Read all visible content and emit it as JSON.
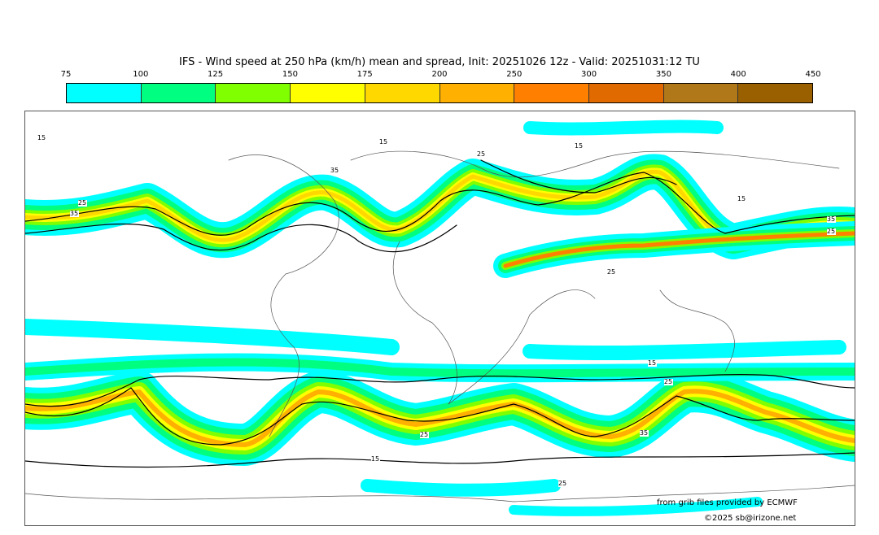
{
  "title": "IFS - Wind speed at 250 hPa (km/h) mean and spread, Init: 20251026 12z - Valid: 20251031:12 TU",
  "colorbar": {
    "ticks": [
      "75",
      "100",
      "125",
      "150",
      "175",
      "200",
      "250",
      "300",
      "350",
      "400",
      "450"
    ],
    "colors": [
      "#00ffff",
      "#00ff80",
      "#80ff00",
      "#ffff00",
      "#ffd800",
      "#ffb000",
      "#ff8000",
      "#e06a00",
      "#b07818",
      "#9a6000"
    ]
  },
  "contour_labels": [
    "15",
    "25",
    "35",
    "15",
    "25",
    "35",
    "15",
    "25",
    "35",
    "15",
    "25",
    "15",
    "25",
    "35",
    "25",
    "15",
    "25"
  ],
  "credits": {
    "source": "from grib files provided by ECMWF",
    "copyright": "©2025 sb@irizone.net"
  }
}
